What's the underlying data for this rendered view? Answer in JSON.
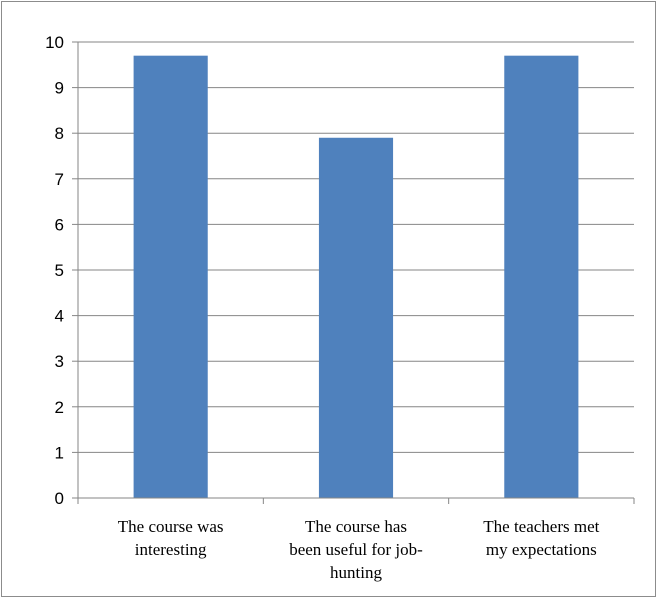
{
  "chart_data": {
    "type": "bar",
    "categories": [
      [
        "The course was",
        "interesting"
      ],
      [
        "The course has",
        "been useful for job-",
        "hunting"
      ],
      [
        "The teachers met",
        "my expectations"
      ]
    ],
    "values": [
      9.7,
      7.9,
      9.7
    ],
    "title": "",
    "xlabel": "",
    "ylabel": "",
    "ylim": [
      0,
      10
    ],
    "yticks": [
      "0",
      "1",
      "2",
      "3",
      "4",
      "5",
      "6",
      "7",
      "8",
      "9",
      "10"
    ],
    "grid": true,
    "legend": "none",
    "bar_color": "#4f81bd",
    "grid_color": "#868686"
  }
}
